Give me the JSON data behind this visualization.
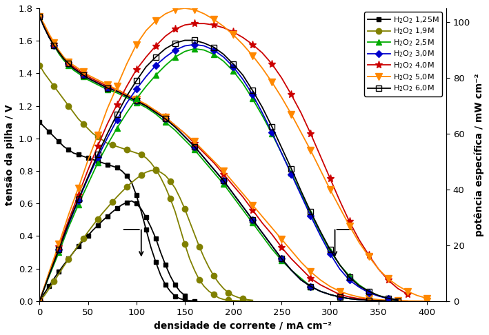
{
  "xlabel": "densidade de corrente / mA cm⁻²",
  "ylabel_left": "tensão da pilha / V",
  "ylabel_right": "potência específica / mW cm⁻²",
  "xlim": [
    0,
    420
  ],
  "ylim_left": [
    0,
    1.8
  ],
  "ylim_right": [
    0,
    105
  ],
  "background_color": "#ffffff",
  "series": [
    {
      "label": "H$_2$O$_2$ 1,25M",
      "color": "#000000",
      "marker": "s",
      "fillstyle": "full",
      "markersize": 5,
      "linewidth": 1.3,
      "pol_x": [
        0,
        5,
        10,
        15,
        20,
        25,
        30,
        35,
        40,
        45,
        50,
        55,
        60,
        65,
        70,
        75,
        80,
        85,
        90,
        95,
        100,
        105,
        110,
        115,
        120,
        125,
        130,
        135,
        140,
        145,
        150,
        155,
        160
      ],
      "pol_y": [
        1.1,
        1.07,
        1.04,
        1.01,
        0.98,
        0.95,
        0.93,
        0.91,
        0.9,
        0.89,
        0.88,
        0.87,
        0.86,
        0.85,
        0.84,
        0.83,
        0.82,
        0.8,
        0.77,
        0.73,
        0.65,
        0.55,
        0.44,
        0.33,
        0.24,
        0.16,
        0.1,
        0.06,
        0.03,
        0.015,
        0.007,
        0.003,
        0.001
      ],
      "pow_x": [
        0,
        5,
        10,
        15,
        20,
        25,
        30,
        35,
        40,
        45,
        50,
        55,
        60,
        65,
        70,
        75,
        80,
        85,
        90,
        95,
        100,
        105,
        110,
        115,
        120,
        125,
        130,
        135,
        140,
        145,
        150
      ],
      "pow_y": [
        0,
        2.8,
        5.5,
        8.1,
        10.6,
        13.0,
        15.2,
        17.5,
        19.6,
        21.6,
        23.5,
        25.4,
        27.1,
        28.8,
        30.4,
        31.9,
        33.3,
        34.5,
        35.4,
        35.9,
        35.0,
        33.0,
        30.0,
        26.5,
        22.5,
        17.5,
        13.0,
        9.0,
        5.8,
        3.5,
        2.0
      ]
    },
    {
      "label": "H$_2$O$_2$ 1,9M",
      "color": "#808000",
      "marker": "o",
      "fillstyle": "full",
      "markersize": 6,
      "linewidth": 1.3,
      "pol_x": [
        0,
        5,
        10,
        15,
        20,
        25,
        30,
        35,
        40,
        45,
        50,
        55,
        60,
        65,
        70,
        75,
        80,
        85,
        90,
        95,
        100,
        105,
        110,
        115,
        120,
        125,
        130,
        135,
        140,
        145,
        150,
        155,
        160,
        165,
        170,
        175,
        180,
        185,
        190,
        195,
        200,
        205,
        210,
        215,
        220
      ],
      "pol_y": [
        1.45,
        1.4,
        1.36,
        1.32,
        1.28,
        1.24,
        1.2,
        1.16,
        1.12,
        1.09,
        1.06,
        1.03,
        1.01,
        0.99,
        0.97,
        0.96,
        0.95,
        0.94,
        0.93,
        0.92,
        0.91,
        0.9,
        0.88,
        0.85,
        0.81,
        0.76,
        0.7,
        0.63,
        0.55,
        0.45,
        0.35,
        0.26,
        0.19,
        0.13,
        0.09,
        0.06,
        0.04,
        0.02,
        0.01,
        0.006,
        0.003,
        0.002,
        0.001,
        0.0005,
        0.0002
      ],
      "pow_x": [
        0,
        5,
        10,
        15,
        20,
        25,
        30,
        35,
        40,
        45,
        50,
        55,
        60,
        65,
        70,
        75,
        80,
        85,
        90,
        95,
        100,
        105,
        110,
        115,
        120,
        125,
        130,
        135,
        140,
        145,
        150,
        155,
        160,
        165,
        170,
        175,
        180,
        185,
        190,
        195,
        200,
        205,
        210,
        215,
        220
      ],
      "pow_y": [
        0,
        2.0,
        4.5,
        7.0,
        9.8,
        12.5,
        15.0,
        17.5,
        20.0,
        22.4,
        24.8,
        27.1,
        29.4,
        31.5,
        33.5,
        35.5,
        37.4,
        39.2,
        40.9,
        42.5,
        43.9,
        45.2,
        46.2,
        46.8,
        46.8,
        46.2,
        45.0,
        43.0,
        40.5,
        37.0,
        33.0,
        28.5,
        24.0,
        19.5,
        15.5,
        12.0,
        9.0,
        6.5,
        4.5,
        3.0,
        2.0,
        1.3,
        0.85,
        0.5,
        0.3
      ]
    },
    {
      "label": "H$_2$O$_2$ 2,5M",
      "color": "#00aa00",
      "marker": "^",
      "fillstyle": "full",
      "markersize": 6,
      "linewidth": 1.3,
      "pol_x": [
        0,
        5,
        10,
        15,
        20,
        25,
        30,
        35,
        40,
        45,
        50,
        60,
        70,
        80,
        90,
        100,
        110,
        120,
        130,
        140,
        150,
        160,
        170,
        180,
        190,
        200,
        210,
        220,
        230,
        240,
        250,
        260,
        270,
        280,
        290,
        300,
        310,
        320,
        330,
        340,
        350,
        360,
        368
      ],
      "pol_y": [
        1.75,
        1.68,
        1.62,
        1.57,
        1.52,
        1.48,
        1.45,
        1.42,
        1.4,
        1.38,
        1.36,
        1.33,
        1.3,
        1.28,
        1.25,
        1.22,
        1.19,
        1.15,
        1.1,
        1.05,
        0.99,
        0.93,
        0.86,
        0.79,
        0.72,
        0.64,
        0.56,
        0.48,
        0.4,
        0.32,
        0.25,
        0.19,
        0.14,
        0.09,
        0.06,
        0.04,
        0.025,
        0.015,
        0.009,
        0.005,
        0.003,
        0.001,
        0.0003
      ],
      "pow_x": [
        0,
        10,
        20,
        30,
        40,
        50,
        60,
        70,
        80,
        90,
        100,
        110,
        120,
        130,
        140,
        150,
        160,
        170,
        180,
        190,
        200,
        210,
        220,
        230,
        240,
        250,
        260,
        270,
        280,
        290,
        300,
        310,
        320,
        330,
        340,
        350,
        360,
        368
      ],
      "pow_y": [
        0,
        9.0,
        17.5,
        26.5,
        34.5,
        42.0,
        49.5,
        56.0,
        62.0,
        67.5,
        72.5,
        77.0,
        81.0,
        84.5,
        87.5,
        89.5,
        90.5,
        90.0,
        88.5,
        86.0,
        82.5,
        78.0,
        72.5,
        66.5,
        60.0,
        53.0,
        46.0,
        38.5,
        31.5,
        24.5,
        18.0,
        13.0,
        9.0,
        5.8,
        3.5,
        2.0,
        1.0,
        0.4
      ]
    },
    {
      "label": "H$_2$O$_2$ 3,0M",
      "color": "#0000cc",
      "marker": "D",
      "fillstyle": "full",
      "markersize": 5,
      "linewidth": 1.3,
      "pol_x": [
        0,
        5,
        10,
        15,
        20,
        25,
        30,
        35,
        40,
        45,
        50,
        60,
        70,
        80,
        90,
        100,
        110,
        120,
        130,
        140,
        150,
        160,
        170,
        180,
        190,
        200,
        210,
        220,
        230,
        240,
        250,
        260,
        270,
        280,
        290,
        300,
        310,
        320,
        330,
        340,
        350,
        360,
        370
      ],
      "pol_y": [
        1.75,
        1.68,
        1.62,
        1.57,
        1.53,
        1.49,
        1.46,
        1.43,
        1.41,
        1.39,
        1.37,
        1.34,
        1.31,
        1.29,
        1.26,
        1.23,
        1.2,
        1.16,
        1.12,
        1.07,
        1.01,
        0.95,
        0.88,
        0.81,
        0.74,
        0.66,
        0.58,
        0.5,
        0.42,
        0.34,
        0.26,
        0.19,
        0.13,
        0.09,
        0.06,
        0.04,
        0.025,
        0.015,
        0.009,
        0.005,
        0.003,
        0.001,
        0.0003
      ],
      "pow_x": [
        0,
        10,
        20,
        30,
        40,
        50,
        60,
        70,
        80,
        90,
        100,
        110,
        120,
        130,
        140,
        150,
        160,
        170,
        180,
        190,
        200,
        210,
        220,
        230,
        240,
        250,
        260,
        270,
        280,
        290,
        300,
        310,
        320,
        330,
        340,
        350,
        360,
        370
      ],
      "pow_y": [
        0,
        9.5,
        18.5,
        27.5,
        36.0,
        44.0,
        51.5,
        58.5,
        65.0,
        71.0,
        76.0,
        80.5,
        84.5,
        87.5,
        90.0,
        91.5,
        92.0,
        91.5,
        90.0,
        87.5,
        84.0,
        79.5,
        74.0,
        67.5,
        60.5,
        53.0,
        45.5,
        38.0,
        30.5,
        23.5,
        17.0,
        11.5,
        7.5,
        5.0,
        3.0,
        1.8,
        0.9,
        0.4
      ]
    },
    {
      "label": "H$_2$O$_2$ 4,0M",
      "color": "#cc0000",
      "marker": "*",
      "fillstyle": "full",
      "markersize": 8,
      "linewidth": 1.3,
      "pol_x": [
        0,
        5,
        10,
        15,
        20,
        25,
        30,
        35,
        40,
        45,
        50,
        60,
        70,
        80,
        90,
        100,
        110,
        120,
        130,
        140,
        150,
        160,
        170,
        180,
        190,
        200,
        210,
        220,
        230,
        240,
        250,
        260,
        270,
        280,
        290,
        300,
        310,
        320,
        330,
        340,
        350,
        360,
        370,
        380
      ],
      "pol_y": [
        1.75,
        1.69,
        1.63,
        1.58,
        1.53,
        1.49,
        1.46,
        1.44,
        1.42,
        1.4,
        1.38,
        1.35,
        1.32,
        1.3,
        1.27,
        1.24,
        1.2,
        1.17,
        1.13,
        1.08,
        1.03,
        0.97,
        0.91,
        0.85,
        0.78,
        0.71,
        0.64,
        0.56,
        0.48,
        0.41,
        0.33,
        0.26,
        0.2,
        0.14,
        0.1,
        0.07,
        0.04,
        0.025,
        0.015,
        0.009,
        0.005,
        0.002,
        0.001,
        0.0004
      ],
      "pow_x": [
        0,
        10,
        20,
        30,
        40,
        50,
        60,
        70,
        80,
        90,
        100,
        110,
        120,
        130,
        140,
        150,
        160,
        170,
        180,
        190,
        200,
        210,
        220,
        230,
        240,
        250,
        260,
        270,
        280,
        290,
        300,
        310,
        320,
        330,
        340,
        350,
        360,
        370,
        380
      ],
      "pow_y": [
        0,
        10.0,
        19.5,
        29.0,
        38.0,
        47.0,
        55.5,
        63.5,
        70.5,
        77.0,
        83.0,
        87.5,
        91.5,
        95.0,
        97.5,
        99.0,
        99.5,
        99.5,
        99.0,
        98.0,
        96.5,
        94.5,
        92.0,
        89.0,
        85.0,
        80.0,
        74.0,
        67.5,
        60.0,
        52.0,
        44.0,
        36.0,
        28.5,
        22.0,
        16.5,
        11.5,
        7.5,
        4.5,
        2.5
      ]
    },
    {
      "label": "H$_2$O$_2$ 5,0M",
      "color": "#ff8800",
      "marker": "v",
      "fillstyle": "full",
      "markersize": 7,
      "linewidth": 1.3,
      "pol_x": [
        0,
        5,
        10,
        15,
        20,
        25,
        30,
        35,
        40,
        45,
        50,
        60,
        70,
        80,
        90,
        100,
        110,
        120,
        130,
        140,
        150,
        160,
        170,
        180,
        190,
        200,
        210,
        220,
        230,
        240,
        250,
        260,
        270,
        280,
        290,
        300,
        310,
        320,
        330,
        340,
        350,
        360,
        370,
        380,
        390,
        400
      ],
      "pol_y": [
        1.75,
        1.7,
        1.64,
        1.59,
        1.54,
        1.5,
        1.47,
        1.45,
        1.43,
        1.41,
        1.39,
        1.36,
        1.33,
        1.3,
        1.27,
        1.24,
        1.21,
        1.17,
        1.13,
        1.08,
        1.03,
        0.98,
        0.92,
        0.86,
        0.8,
        0.73,
        0.66,
        0.59,
        0.52,
        0.45,
        0.38,
        0.31,
        0.24,
        0.18,
        0.13,
        0.09,
        0.06,
        0.04,
        0.025,
        0.015,
        0.009,
        0.005,
        0.003,
        0.001,
        0.0005,
        0.0002
      ],
      "pow_x": [
        0,
        10,
        20,
        30,
        40,
        50,
        60,
        70,
        80,
        90,
        100,
        110,
        120,
        130,
        140,
        150,
        160,
        170,
        180,
        190,
        200,
        210,
        220,
        230,
        240,
        250,
        260,
        270,
        280,
        290,
        300,
        310,
        320,
        330,
        340,
        350,
        360,
        370,
        380,
        390,
        400
      ],
      "pow_y": [
        0,
        10.5,
        20.5,
        31.0,
        40.5,
        50.5,
        59.5,
        69.0,
        77.0,
        85.0,
        92.0,
        97.0,
        100.5,
        103.0,
        104.5,
        105.0,
        104.5,
        103.0,
        101.0,
        98.5,
        95.5,
        92.0,
        88.0,
        83.5,
        78.5,
        73.0,
        67.0,
        60.5,
        54.0,
        47.0,
        40.0,
        33.5,
        27.0,
        21.0,
        16.0,
        11.5,
        8.0,
        5.5,
        3.5,
        2.0,
        1.0
      ]
    },
    {
      "label": "H$_2$O$_2$ 6,0M",
      "color": "#000000",
      "marker": "s",
      "fillstyle": "none",
      "markersize": 6,
      "linewidth": 1.3,
      "pol_x": [
        0,
        5,
        10,
        15,
        20,
        25,
        30,
        35,
        40,
        45,
        50,
        60,
        70,
        80,
        90,
        100,
        110,
        120,
        130,
        140,
        150,
        160,
        170,
        180,
        190,
        200,
        210,
        220,
        230,
        240,
        250,
        260,
        270,
        280,
        290,
        300,
        310,
        320,
        330,
        340,
        350,
        360,
        370
      ],
      "pol_y": [
        1.75,
        1.68,
        1.62,
        1.57,
        1.53,
        1.49,
        1.46,
        1.43,
        1.41,
        1.39,
        1.37,
        1.34,
        1.31,
        1.29,
        1.26,
        1.23,
        1.2,
        1.16,
        1.12,
        1.07,
        1.01,
        0.95,
        0.88,
        0.81,
        0.74,
        0.66,
        0.58,
        0.5,
        0.42,
        0.34,
        0.26,
        0.19,
        0.13,
        0.09,
        0.06,
        0.04,
        0.025,
        0.015,
        0.009,
        0.005,
        0.003,
        0.001,
        0.0003
      ],
      "pow_x": [
        0,
        10,
        20,
        30,
        40,
        50,
        60,
        70,
        80,
        90,
        100,
        110,
        120,
        130,
        140,
        150,
        160,
        170,
        180,
        190,
        200,
        210,
        220,
        230,
        240,
        250,
        260,
        270,
        280,
        290,
        300,
        310,
        320,
        330,
        340,
        350,
        360,
        370
      ],
      "pow_y": [
        0,
        9.5,
        18.5,
        28.0,
        36.5,
        44.5,
        52.5,
        60.0,
        67.0,
        73.5,
        79.0,
        84.0,
        87.5,
        90.5,
        92.5,
        93.5,
        93.5,
        92.5,
        91.0,
        88.5,
        85.0,
        81.0,
        75.5,
        69.5,
        62.5,
        55.0,
        47.5,
        39.5,
        32.0,
        25.0,
        18.5,
        13.0,
        8.5,
        5.5,
        3.5,
        2.0,
        1.0,
        0.4
      ]
    }
  ]
}
